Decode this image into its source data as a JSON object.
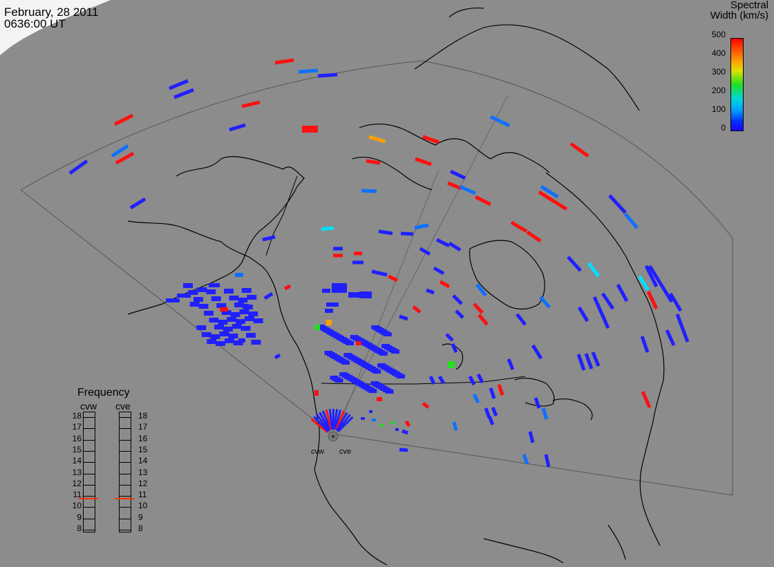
{
  "header": {
    "date": "February, 28 2011",
    "time": "0636:00 UT"
  },
  "colorbar": {
    "title_line1": "Spectral",
    "title_line2": "Width (km/s)",
    "ticks": [
      "500",
      "400",
      "300",
      "200",
      "100",
      "0"
    ],
    "colors": {
      "red": "#ff0000",
      "yellow": "#ffa000",
      "green": "#20e020",
      "cyan": "#00d8ff",
      "lightblue": "#0080ff",
      "blue": "#2020ff"
    }
  },
  "radars": {
    "west_label": "cvw",
    "east_label": "cve"
  },
  "frequency_panel": {
    "title": "Frequency",
    "left_label": "cvw",
    "right_label": "cve",
    "scale": [
      "18",
      "17",
      "16",
      "15",
      "14",
      "13",
      "12",
      "11",
      "10",
      "9",
      "8"
    ],
    "cvw_value": 10.8,
    "cve_value": 10.8
  }
}
